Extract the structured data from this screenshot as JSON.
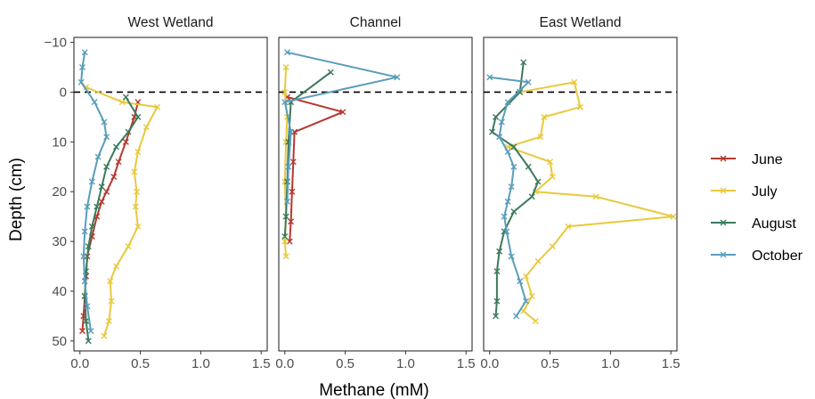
{
  "chart_data": {
    "type": "line",
    "xlabel": "Methane (mM)",
    "ylabel": "Depth (cm)",
    "xlim": [
      -0.05,
      1.55
    ],
    "ylim": [
      52,
      -11
    ],
    "y_reversed": true,
    "xticks": [
      "0.0",
      "0.5",
      "1.0",
      "1.5"
    ],
    "yticks": [
      "−10",
      "0",
      "10",
      "20",
      "30",
      "40",
      "50"
    ],
    "ytick_values": [
      -10,
      0,
      10,
      20,
      30,
      40,
      50
    ],
    "xtick_values": [
      0,
      0.5,
      1.0,
      1.5
    ],
    "reference_line": {
      "y": 0,
      "style": "dashed",
      "color": "#000000"
    },
    "legend": {
      "position": "right",
      "entries": [
        "June",
        "July",
        "August",
        "October"
      ]
    },
    "colors": {
      "June": "#B5382F",
      "July": "#E8C93D",
      "August": "#3B7A5C",
      "October": "#5A9DBB"
    },
    "grid": false,
    "panels": [
      {
        "title": "West Wetland",
        "series": [
          {
            "name": "June",
            "points": [
              [
                0.48,
                2
              ],
              [
                0.45,
                5
              ],
              [
                0.38,
                10
              ],
              [
                0.32,
                14
              ],
              [
                0.28,
                17
              ],
              [
                0.22,
                20
              ],
              [
                0.18,
                22
              ],
              [
                0.14,
                25
              ],
              [
                0.1,
                29
              ],
              [
                0.06,
                33
              ],
              [
                0.05,
                37
              ],
              [
                0.04,
                41
              ],
              [
                0.03,
                45
              ],
              [
                0.02,
                48
              ]
            ]
          },
          {
            "name": "July",
            "points": [
              [
                0.05,
                -1
              ],
              [
                0.35,
                2
              ],
              [
                0.64,
                3
              ],
              [
                0.55,
                7
              ],
              [
                0.48,
                12
              ],
              [
                0.45,
                16
              ],
              [
                0.47,
                20
              ],
              [
                0.46,
                23
              ],
              [
                0.48,
                27
              ],
              [
                0.4,
                31
              ],
              [
                0.3,
                35
              ],
              [
                0.25,
                38
              ],
              [
                0.26,
                42
              ],
              [
                0.24,
                46
              ],
              [
                0.2,
                49
              ]
            ]
          },
          {
            "name": "August",
            "points": [
              [
                0.38,
                1
              ],
              [
                0.48,
                5
              ],
              [
                0.4,
                8
              ],
              [
                0.3,
                11
              ],
              [
                0.22,
                15
              ],
              [
                0.18,
                19
              ],
              [
                0.14,
                23
              ],
              [
                0.1,
                27
              ],
              [
                0.07,
                31
              ],
              [
                0.05,
                36
              ],
              [
                0.04,
                41
              ],
              [
                0.05,
                46
              ],
              [
                0.07,
                50
              ]
            ]
          },
          {
            "name": "October",
            "points": [
              [
                0.04,
                -8
              ],
              [
                0.02,
                -5
              ],
              [
                0.01,
                -2
              ],
              [
                0.12,
                2
              ],
              [
                0.2,
                6
              ],
              [
                0.22,
                9
              ],
              [
                0.15,
                13
              ],
              [
                0.1,
                18
              ],
              [
                0.06,
                23
              ],
              [
                0.04,
                28
              ],
              [
                0.03,
                33
              ],
              [
                0.04,
                38
              ],
              [
                0.06,
                43
              ],
              [
                0.09,
                48
              ]
            ]
          }
        ]
      },
      {
        "title": "Channel",
        "series": [
          {
            "name": "June",
            "points": [
              [
                0.02,
                1
              ],
              [
                0.48,
                4
              ],
              [
                0.08,
                8
              ],
              [
                0.07,
                14
              ],
              [
                0.06,
                20
              ],
              [
                0.05,
                26
              ],
              [
                0.04,
                30
              ]
            ]
          },
          {
            "name": "July",
            "points": [
              [
                0.01,
                -5
              ],
              [
                0.0,
                0
              ],
              [
                0.02,
                5
              ],
              [
                0.01,
                10
              ],
              [
                0.0,
                18
              ],
              [
                0.01,
                25
              ],
              [
                0.0,
                30
              ],
              [
                0.01,
                33
              ]
            ]
          },
          {
            "name": "August",
            "points": [
              [
                0.38,
                -4
              ],
              [
                0.05,
                2
              ],
              [
                0.03,
                10
              ],
              [
                0.02,
                18
              ],
              [
                0.01,
                25
              ],
              [
                0.0,
                29
              ]
            ]
          },
          {
            "name": "October",
            "points": [
              [
                0.02,
                -8
              ],
              [
                0.93,
                -3
              ],
              [
                0.0,
                2
              ],
              [
                0.05,
                8
              ],
              [
                0.03,
                15
              ],
              [
                0.02,
                22
              ]
            ]
          }
        ]
      },
      {
        "title": "East Wetland",
        "series": [
          {
            "name": "July",
            "points": [
              [
                0.25,
                0
              ],
              [
                0.7,
                -2
              ],
              [
                0.75,
                3
              ],
              [
                0.45,
                5
              ],
              [
                0.42,
                9
              ],
              [
                0.15,
                11
              ],
              [
                0.5,
                14
              ],
              [
                0.52,
                17
              ],
              [
                0.38,
                20
              ],
              [
                0.88,
                21
              ],
              [
                1.52,
                25
              ],
              [
                0.65,
                27
              ],
              [
                0.52,
                31
              ],
              [
                0.4,
                34
              ],
              [
                0.3,
                37
              ],
              [
                0.35,
                41
              ],
              [
                0.28,
                44
              ],
              [
                0.38,
                46
              ]
            ]
          },
          {
            "name": "August",
            "points": [
              [
                0.28,
                -6
              ],
              [
                0.25,
                0
              ],
              [
                0.05,
                5
              ],
              [
                0.02,
                8
              ],
              [
                0.2,
                11
              ],
              [
                0.32,
                15
              ],
              [
                0.4,
                18
              ],
              [
                0.35,
                21
              ],
              [
                0.2,
                24
              ],
              [
                0.12,
                28
              ],
              [
                0.08,
                32
              ],
              [
                0.06,
                36
              ],
              [
                0.06,
                42
              ],
              [
                0.05,
                45
              ]
            ]
          },
          {
            "name": "October",
            "points": [
              [
                0.0,
                -3
              ],
              [
                0.32,
                -2
              ],
              [
                0.15,
                2
              ],
              [
                0.1,
                6
              ],
              [
                0.08,
                9
              ],
              [
                0.15,
                12
              ],
              [
                0.2,
                15
              ],
              [
                0.18,
                19
              ],
              [
                0.15,
                22
              ],
              [
                0.12,
                25
              ],
              [
                0.14,
                28
              ],
              [
                0.18,
                33
              ],
              [
                0.25,
                38
              ],
              [
                0.3,
                42
              ],
              [
                0.22,
                45
              ]
            ]
          }
        ]
      }
    ]
  }
}
